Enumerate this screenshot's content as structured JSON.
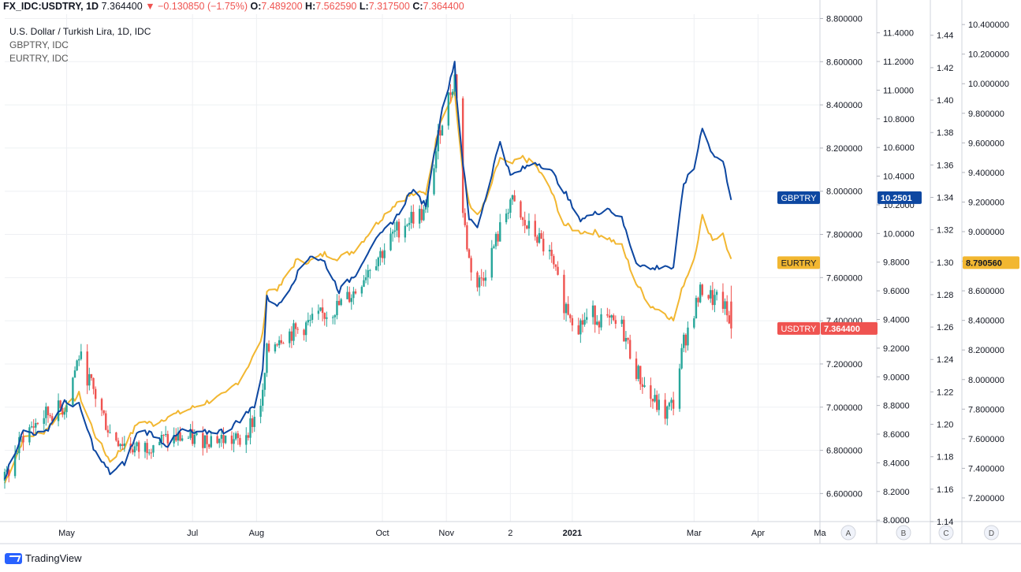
{
  "header": {
    "symbol": "FX_IDC:USDTRY, 1D",
    "price": "7.364400",
    "change_arrow": "▼",
    "change": "−0.130850 (−1.75%)",
    "o_label": "O:",
    "o_value": "7.489200",
    "h_label": "H:",
    "h_value": "7.562590",
    "l_label": "L:",
    "l_value": "7.317500",
    "c_label": "C:",
    "c_value": "7.364400"
  },
  "legend": {
    "main": "U.S. Dollar / Turkish Lira, 1D, IDC",
    "gbp": "GBPTRY, IDC",
    "eur": "EURTRY, IDC"
  },
  "branding": "TradingView",
  "colors": {
    "up": "#26a69a",
    "down": "#ef5350",
    "gbp": "#0d47a1",
    "eur": "#f2b731",
    "grid": "#eef0f3"
  },
  "chart_data": {
    "type": "line",
    "title": "U.S. Dollar / Turkish Lira, 1D, IDC",
    "x_ticks": [
      "May",
      "Jul",
      "Aug",
      "Oct",
      "Nov",
      "2",
      "2021",
      "Mar",
      "Apr",
      "Ma"
    ],
    "x_range": [
      "2020-04-01",
      "2021-05-01"
    ],
    "axes": {
      "A": {
        "ticks": [
          "6.600000",
          "6.800000",
          "7.000000",
          "7.200000",
          "7.400000",
          "7.600000",
          "7.800000",
          "8.000000",
          "8.200000",
          "8.400000",
          "8.600000",
          "8.800000"
        ],
        "ylim": [
          6.47,
          8.82
        ]
      },
      "B": {
        "ticks": [
          "8.0000",
          "8.2000",
          "8.4000",
          "8.6000",
          "8.8000",
          "9.0000",
          "9.2000",
          "9.4000",
          "9.6000",
          "9.8000",
          "10.0000",
          "10.2000",
          "10.4000",
          "10.6000",
          "10.8000",
          "11.0000",
          "11.2000",
          "11.4000"
        ],
        "ylim": [
          7.99,
          11.53
        ]
      },
      "C": {
        "ticks": [
          "1.14",
          "1.16",
          "1.18",
          "1.20",
          "1.22",
          "1.24",
          "1.26",
          "1.28",
          "1.30",
          "1.32",
          "1.34",
          "1.36",
          "1.38",
          "1.40",
          "1.42",
          "1.44"
        ],
        "ylim": [
          1.14,
          1.453
        ]
      },
      "D": {
        "ticks": [
          "7.200000",
          "7.400000",
          "7.600000",
          "7.800000",
          "8.000000",
          "8.200000",
          "8.400000",
          "8.600000",
          "8.800000",
          "9.000000",
          "9.200000",
          "9.400000",
          "9.600000",
          "9.800000",
          "10.000000",
          "10.200000",
          "10.400000"
        ],
        "ylim": [
          7.04,
          10.47
        ]
      }
    },
    "axis_letters": [
      "A",
      "B",
      "C",
      "D"
    ],
    "price_labels": [
      {
        "name": "GBPTRY",
        "value": "10.2501"
      },
      {
        "name": "EURTRY",
        "value": "8.790560"
      },
      {
        "name": "USDTRY",
        "value": "7.364400"
      }
    ],
    "series": [
      {
        "name": "USDTRY",
        "type": "candlestick",
        "axis": "A",
        "close_path": [
          [
            "2020-04-01",
            6.66
          ],
          [
            "2020-04-10",
            6.87
          ],
          [
            "2020-04-20",
            6.96
          ],
          [
            "2020-04-30",
            7.0
          ],
          [
            "2020-05-07",
            7.24
          ],
          [
            "2020-05-15",
            7.05
          ],
          [
            "2020-05-22",
            6.88
          ],
          [
            "2020-05-29",
            6.83
          ],
          [
            "2020-06-05",
            6.8
          ],
          [
            "2020-06-12",
            6.84
          ],
          [
            "2020-06-19",
            6.85
          ],
          [
            "2020-06-26",
            6.86
          ],
          [
            "2020-07-03",
            6.85
          ],
          [
            "2020-07-10",
            6.86
          ],
          [
            "2020-07-17",
            6.85
          ],
          [
            "2020-07-24",
            6.84
          ],
          [
            "2020-07-31",
            6.95
          ],
          [
            "2020-08-04",
            7.05
          ],
          [
            "2020-08-06",
            7.25
          ],
          [
            "2020-08-12",
            7.33
          ],
          [
            "2020-08-20",
            7.35
          ],
          [
            "2020-08-27",
            7.39
          ],
          [
            "2020-09-03",
            7.43
          ],
          [
            "2020-09-10",
            7.47
          ],
          [
            "2020-09-18",
            7.54
          ],
          [
            "2020-09-25",
            7.66
          ],
          [
            "2020-10-01",
            7.72
          ],
          [
            "2020-10-08",
            7.82
          ],
          [
            "2020-10-15",
            7.88
          ],
          [
            "2020-10-22",
            7.9
          ],
          [
            "2020-10-29",
            8.3
          ],
          [
            "2020-11-05",
            8.53
          ],
          [
            "2020-11-06",
            8.45
          ],
          [
            "2020-11-09",
            7.9
          ],
          [
            "2020-11-12",
            7.68
          ],
          [
            "2020-11-16",
            7.56
          ],
          [
            "2020-11-20",
            7.64
          ],
          [
            "2020-11-27",
            7.82
          ],
          [
            "2020-12-02",
            7.96
          ],
          [
            "2020-12-08",
            7.85
          ],
          [
            "2020-12-14",
            7.8
          ],
          [
            "2020-12-21",
            7.7
          ],
          [
            "2020-12-28",
            7.48
          ],
          [
            "2021-01-04",
            7.38
          ],
          [
            "2021-01-11",
            7.43
          ],
          [
            "2021-01-18",
            7.39
          ],
          [
            "2021-01-25",
            7.37
          ],
          [
            "2021-02-01",
            7.17
          ],
          [
            "2021-02-08",
            7.04
          ],
          [
            "2021-02-15",
            6.97
          ],
          [
            "2021-02-19",
            7.02
          ],
          [
            "2021-02-24",
            7.3
          ],
          [
            "2021-03-01",
            7.45
          ],
          [
            "2021-03-05",
            7.55
          ],
          [
            "2021-03-10",
            7.5
          ],
          [
            "2021-03-15",
            7.48
          ],
          [
            "2021-03-19",
            7.36
          ]
        ],
        "last": {
          "open": 7.4892,
          "high": 7.56259,
          "low": 7.3175,
          "close": 7.3644
        }
      },
      {
        "name": "GBPTRY",
        "type": "line",
        "axis": "B",
        "points": [
          [
            "2020-04-01",
            8.3
          ],
          [
            "2020-04-10",
            8.62
          ],
          [
            "2020-04-20",
            8.6
          ],
          [
            "2020-04-30",
            8.82
          ],
          [
            "2020-05-07",
            8.8
          ],
          [
            "2020-05-15",
            8.47
          ],
          [
            "2020-05-22",
            8.33
          ],
          [
            "2020-05-29",
            8.4
          ],
          [
            "2020-06-05",
            8.63
          ],
          [
            "2020-06-12",
            8.6
          ],
          [
            "2020-06-19",
            8.52
          ],
          [
            "2020-06-26",
            8.63
          ],
          [
            "2020-07-03",
            8.6
          ],
          [
            "2020-07-10",
            8.62
          ],
          [
            "2020-07-17",
            8.62
          ],
          [
            "2020-07-24",
            8.7
          ],
          [
            "2020-07-31",
            8.8
          ],
          [
            "2020-08-04",
            9.05
          ],
          [
            "2020-08-06",
            9.55
          ],
          [
            "2020-08-12",
            9.5
          ],
          [
            "2020-08-20",
            9.7
          ],
          [
            "2020-08-27",
            9.85
          ],
          [
            "2020-09-03",
            9.8
          ],
          [
            "2020-09-10",
            9.6
          ],
          [
            "2020-09-18",
            9.72
          ],
          [
            "2020-09-25",
            9.9
          ],
          [
            "2020-10-01",
            10.0
          ],
          [
            "2020-10-08",
            10.12
          ],
          [
            "2020-10-15",
            10.3
          ],
          [
            "2020-10-22",
            10.2
          ],
          [
            "2020-10-29",
            10.8
          ],
          [
            "2020-11-05",
            11.2
          ],
          [
            "2020-11-06",
            10.95
          ],
          [
            "2020-11-09",
            10.5
          ],
          [
            "2020-11-12",
            10.1
          ],
          [
            "2020-11-16",
            10.05
          ],
          [
            "2020-11-20",
            10.25
          ],
          [
            "2020-11-27",
            10.65
          ],
          [
            "2020-12-02",
            10.4
          ],
          [
            "2020-12-08",
            10.45
          ],
          [
            "2020-12-14",
            10.5
          ],
          [
            "2020-12-21",
            10.45
          ],
          [
            "2020-12-28",
            10.3
          ],
          [
            "2021-01-04",
            10.1
          ],
          [
            "2021-01-11",
            10.13
          ],
          [
            "2021-01-18",
            10.18
          ],
          [
            "2021-01-25",
            10.1
          ],
          [
            "2021-02-01",
            9.8
          ],
          [
            "2021-02-08",
            9.75
          ],
          [
            "2021-02-15",
            9.78
          ],
          [
            "2021-02-19",
            9.75
          ],
          [
            "2021-02-24",
            10.35
          ],
          [
            "2021-03-01",
            10.45
          ],
          [
            "2021-03-05",
            10.75
          ],
          [
            "2021-03-10",
            10.55
          ],
          [
            "2021-03-15",
            10.5
          ],
          [
            "2021-03-19",
            10.25
          ]
        ]
      },
      {
        "name": "EURTRY",
        "type": "line",
        "axis": "D",
        "points": [
          [
            "2020-04-01",
            7.3
          ],
          [
            "2020-04-10",
            7.6
          ],
          [
            "2020-04-20",
            7.65
          ],
          [
            "2020-04-30",
            7.8
          ],
          [
            "2020-05-07",
            7.9
          ],
          [
            "2020-05-15",
            7.62
          ],
          [
            "2020-05-22",
            7.45
          ],
          [
            "2020-05-29",
            7.55
          ],
          [
            "2020-06-05",
            7.72
          ],
          [
            "2020-06-12",
            7.7
          ],
          [
            "2020-06-19",
            7.75
          ],
          [
            "2020-06-26",
            7.78
          ],
          [
            "2020-07-03",
            7.82
          ],
          [
            "2020-07-10",
            7.86
          ],
          [
            "2020-07-17",
            7.9
          ],
          [
            "2020-07-24",
            8.0
          ],
          [
            "2020-07-31",
            8.17
          ],
          [
            "2020-08-04",
            8.3
          ],
          [
            "2020-08-06",
            8.6
          ],
          [
            "2020-08-12",
            8.62
          ],
          [
            "2020-08-20",
            8.8
          ],
          [
            "2020-08-27",
            8.8
          ],
          [
            "2020-09-03",
            8.85
          ],
          [
            "2020-09-10",
            8.82
          ],
          [
            "2020-09-18",
            8.88
          ],
          [
            "2020-09-25",
            9.0
          ],
          [
            "2020-10-01",
            9.1
          ],
          [
            "2020-10-08",
            9.2
          ],
          [
            "2020-10-15",
            9.25
          ],
          [
            "2020-10-22",
            9.26
          ],
          [
            "2020-10-29",
            9.75
          ],
          [
            "2020-11-05",
            9.95
          ],
          [
            "2020-11-06",
            9.8
          ],
          [
            "2020-11-09",
            9.4
          ],
          [
            "2020-11-12",
            9.2
          ],
          [
            "2020-11-16",
            9.1
          ],
          [
            "2020-11-20",
            9.2
          ],
          [
            "2020-11-27",
            9.5
          ],
          [
            "2020-12-02",
            9.45
          ],
          [
            "2020-12-08",
            9.5
          ],
          [
            "2020-12-14",
            9.45
          ],
          [
            "2020-12-21",
            9.3
          ],
          [
            "2020-12-28",
            9.05
          ],
          [
            "2021-01-04",
            9.0
          ],
          [
            "2021-01-11",
            9.0
          ],
          [
            "2021-01-18",
            8.96
          ],
          [
            "2021-01-25",
            8.9
          ],
          [
            "2021-02-01",
            8.65
          ],
          [
            "2021-02-08",
            8.5
          ],
          [
            "2021-02-15",
            8.45
          ],
          [
            "2021-02-19",
            8.4
          ],
          [
            "2021-02-24",
            8.65
          ],
          [
            "2021-03-01",
            8.82
          ],
          [
            "2021-03-05",
            9.1
          ],
          [
            "2021-03-10",
            8.95
          ],
          [
            "2021-03-15",
            8.98
          ],
          [
            "2021-03-19",
            8.8
          ]
        ]
      }
    ]
  }
}
